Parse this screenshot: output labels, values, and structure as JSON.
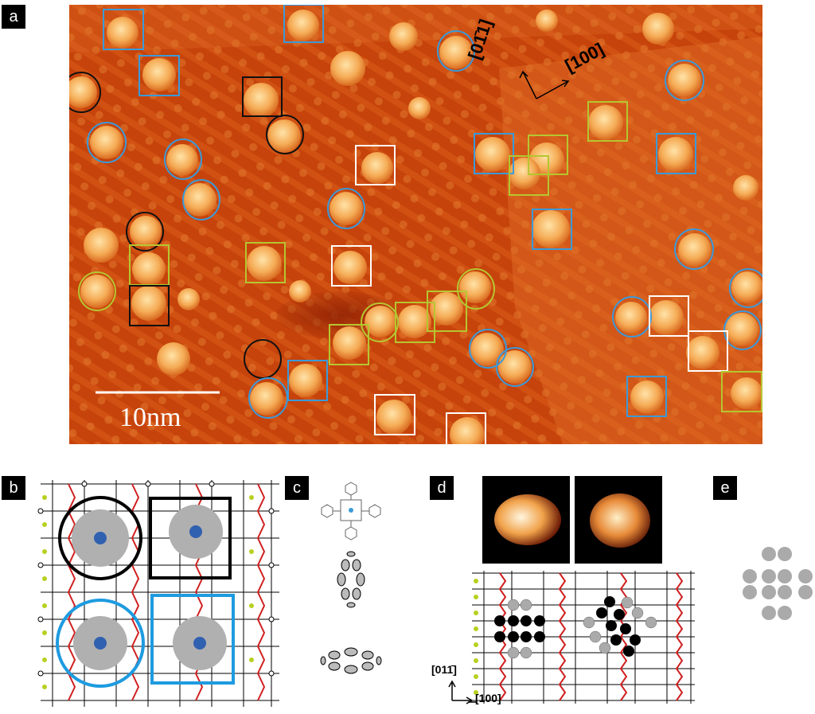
{
  "panels": {
    "a": "a",
    "b": "b",
    "c": "c",
    "d": "d",
    "e": "e"
  },
  "scale_bar": {
    "label": "10nm"
  },
  "directions": {
    "a_up": "[01̄1]",
    "a_right": "[100]",
    "d_up": "[011̄]",
    "d_right": "[100]"
  },
  "colors": {
    "substrate": "#c8450c",
    "molecule": "#f5b05a",
    "marker_black": "#111111",
    "marker_blue": "#3b9ad9",
    "marker_yellow": "#b5c630",
    "marker_white": "#ffffff",
    "atom_black": "#000000",
    "atom_grey": "#aaaaaa"
  }
}
